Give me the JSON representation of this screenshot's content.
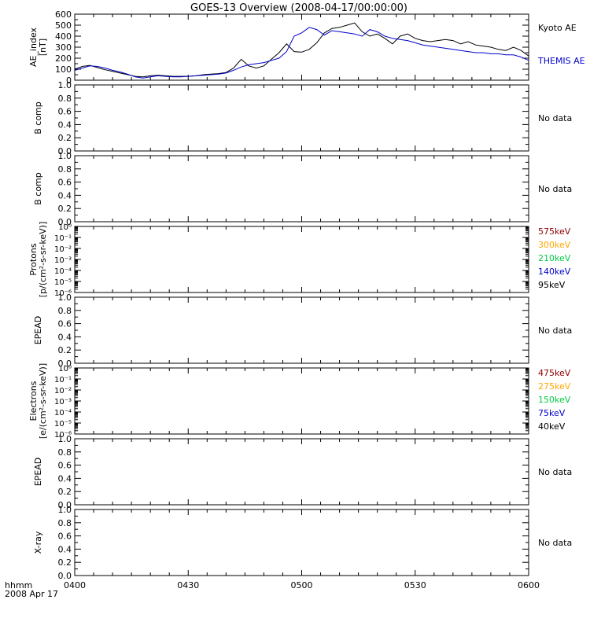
{
  "title": "GOES-13 Overview (2008-04-17/00:00:00)",
  "time_axis": {
    "corner_label": "hhmm",
    "date_label": "2008 Apr 17",
    "tick_labels": [
      "0400",
      "0430",
      "0500",
      "0530",
      "0600"
    ]
  },
  "colors": {
    "axis": "#000000",
    "kyoto": "#000000",
    "themis": "#0000cc"
  },
  "chart_data": [
    {
      "type": "line",
      "ylabel": [
        "AE_index",
        "[nT]"
      ],
      "ylim": [
        0,
        600
      ],
      "yticks": [
        "0",
        "100",
        "200",
        "300",
        "400",
        "500",
        "600"
      ],
      "xlim_minutes": [
        0,
        120
      ],
      "legend": [
        {
          "label": "Kyoto AE",
          "color": "#000000"
        },
        {
          "label": "THEMIS AE",
          "color": "#0000cc"
        }
      ],
      "series": [
        {
          "name": "Kyoto AE",
          "color": "#000000",
          "x": [
            0,
            2,
            4,
            6,
            8,
            10,
            12,
            14,
            16,
            18,
            20,
            22,
            24,
            26,
            28,
            30,
            32,
            34,
            36,
            38,
            40,
            42,
            44,
            46,
            48,
            50,
            52,
            54,
            56,
            58,
            60,
            62,
            64,
            66,
            68,
            70,
            72,
            74,
            76,
            78,
            80,
            82,
            84,
            86,
            88,
            90,
            92,
            94,
            96,
            98,
            100,
            102,
            104,
            106,
            108,
            110,
            112,
            114,
            116,
            118,
            120
          ],
          "values": [
            100,
            125,
            135,
            115,
            95,
            80,
            65,
            50,
            35,
            30,
            40,
            45,
            40,
            35,
            35,
            35,
            40,
            50,
            55,
            60,
            70,
            110,
            190,
            130,
            110,
            130,
            190,
            250,
            330,
            260,
            255,
            280,
            340,
            430,
            470,
            480,
            500,
            520,
            440,
            400,
            420,
            380,
            330,
            400,
            420,
            380,
            360,
            350,
            360,
            370,
            360,
            330,
            350,
            320,
            310,
            300,
            280,
            270,
            300,
            270,
            220
          ]
        },
        {
          "name": "THEMIS AE",
          "color": "#0000cc",
          "x": [
            0,
            2,
            4,
            6,
            8,
            10,
            12,
            14,
            16,
            18,
            20,
            22,
            24,
            26,
            28,
            30,
            32,
            34,
            36,
            38,
            40,
            42,
            44,
            46,
            48,
            50,
            52,
            54,
            56,
            58,
            60,
            62,
            64,
            66,
            68,
            70,
            72,
            74,
            76,
            78,
            80,
            82,
            84,
            86,
            88,
            90,
            92,
            94,
            96,
            98,
            100,
            102,
            104,
            106,
            108,
            110,
            112,
            114,
            116,
            118,
            120
          ],
          "values": [
            90,
            110,
            130,
            125,
            110,
            90,
            75,
            55,
            30,
            20,
            30,
            40,
            35,
            30,
            30,
            35,
            40,
            45,
            50,
            55,
            65,
            90,
            120,
            140,
            150,
            160,
            180,
            200,
            260,
            400,
            430,
            480,
            460,
            410,
            450,
            440,
            430,
            420,
            400,
            460,
            440,
            400,
            380,
            370,
            360,
            340,
            320,
            310,
            300,
            290,
            280,
            270,
            260,
            250,
            250,
            240,
            240,
            230,
            230,
            210,
            180
          ]
        }
      ]
    },
    {
      "type": "line",
      "ylabel": [
        "B comp"
      ],
      "ylim": [
        0,
        1
      ],
      "yticks": [
        "0.0",
        "0.2",
        "0.4",
        "0.6",
        "0.8",
        "1.0"
      ],
      "legend": [
        {
          "label": "No data",
          "color": "#000000"
        }
      ],
      "series": []
    },
    {
      "type": "line",
      "ylabel": [
        "B comp"
      ],
      "ylim": [
        0,
        1
      ],
      "yticks": [
        "0.0",
        "0.2",
        "0.4",
        "0.6",
        "0.8",
        "1.0"
      ],
      "legend": [
        {
          "label": "No data",
          "color": "#000000"
        }
      ],
      "series": []
    },
    {
      "type": "line",
      "ylabel": [
        "Protons",
        "[p/(cm²-s-sr-keV)]"
      ],
      "log_scale": true,
      "ylim": [
        1e-06,
        1
      ],
      "yticks": [
        "10⁻⁶",
        "10⁻⁵",
        "10⁻⁴",
        "10⁻³",
        "10⁻²",
        "10⁻¹",
        "10⁰"
      ],
      "legend": [
        {
          "label": "575keV",
          "color": "#8b0000"
        },
        {
          "label": "300keV",
          "color": "#ffa500"
        },
        {
          "label": "210keV",
          "color": "#00cc44"
        },
        {
          "label": "140keV",
          "color": "#0000cc"
        },
        {
          "label": "95keV",
          "color": "#000000"
        }
      ],
      "series": []
    },
    {
      "type": "line",
      "ylabel": [
        "EPEAD"
      ],
      "ylim": [
        0,
        1
      ],
      "yticks": [
        "0.0",
        "0.2",
        "0.4",
        "0.6",
        "0.8",
        "1.0"
      ],
      "legend": [
        {
          "label": "No data",
          "color": "#000000"
        }
      ],
      "series": []
    },
    {
      "type": "line",
      "ylabel": [
        "Electrons",
        "[e/(cm²-s-sr-keV)]"
      ],
      "log_scale": true,
      "ylim": [
        1e-06,
        1
      ],
      "yticks": [
        "10⁻⁶",
        "10⁻⁵",
        "10⁻⁴",
        "10⁻³",
        "10⁻²",
        "10⁻¹",
        "10⁰"
      ],
      "legend": [
        {
          "label": "475keV",
          "color": "#8b0000"
        },
        {
          "label": "275keV",
          "color": "#ffa500"
        },
        {
          "label": "150keV",
          "color": "#00cc44"
        },
        {
          "label": "75keV",
          "color": "#0000cc"
        },
        {
          "label": "40keV",
          "color": "#000000"
        }
      ],
      "series": []
    },
    {
      "type": "line",
      "ylabel": [
        "EPEAD"
      ],
      "ylim": [
        0,
        1
      ],
      "yticks": [
        "0.0",
        "0.2",
        "0.4",
        "0.6",
        "0.8",
        "1.0"
      ],
      "legend": [
        {
          "label": "No data",
          "color": "#000000"
        }
      ],
      "series": []
    },
    {
      "type": "line",
      "ylabel": [
        "X-ray"
      ],
      "ylim": [
        0,
        1
      ],
      "yticks": [
        "0.0",
        "0.2",
        "0.4",
        "0.6",
        "0.8",
        "1.0"
      ],
      "legend": [
        {
          "label": "No data",
          "color": "#000000"
        }
      ],
      "series": []
    }
  ]
}
